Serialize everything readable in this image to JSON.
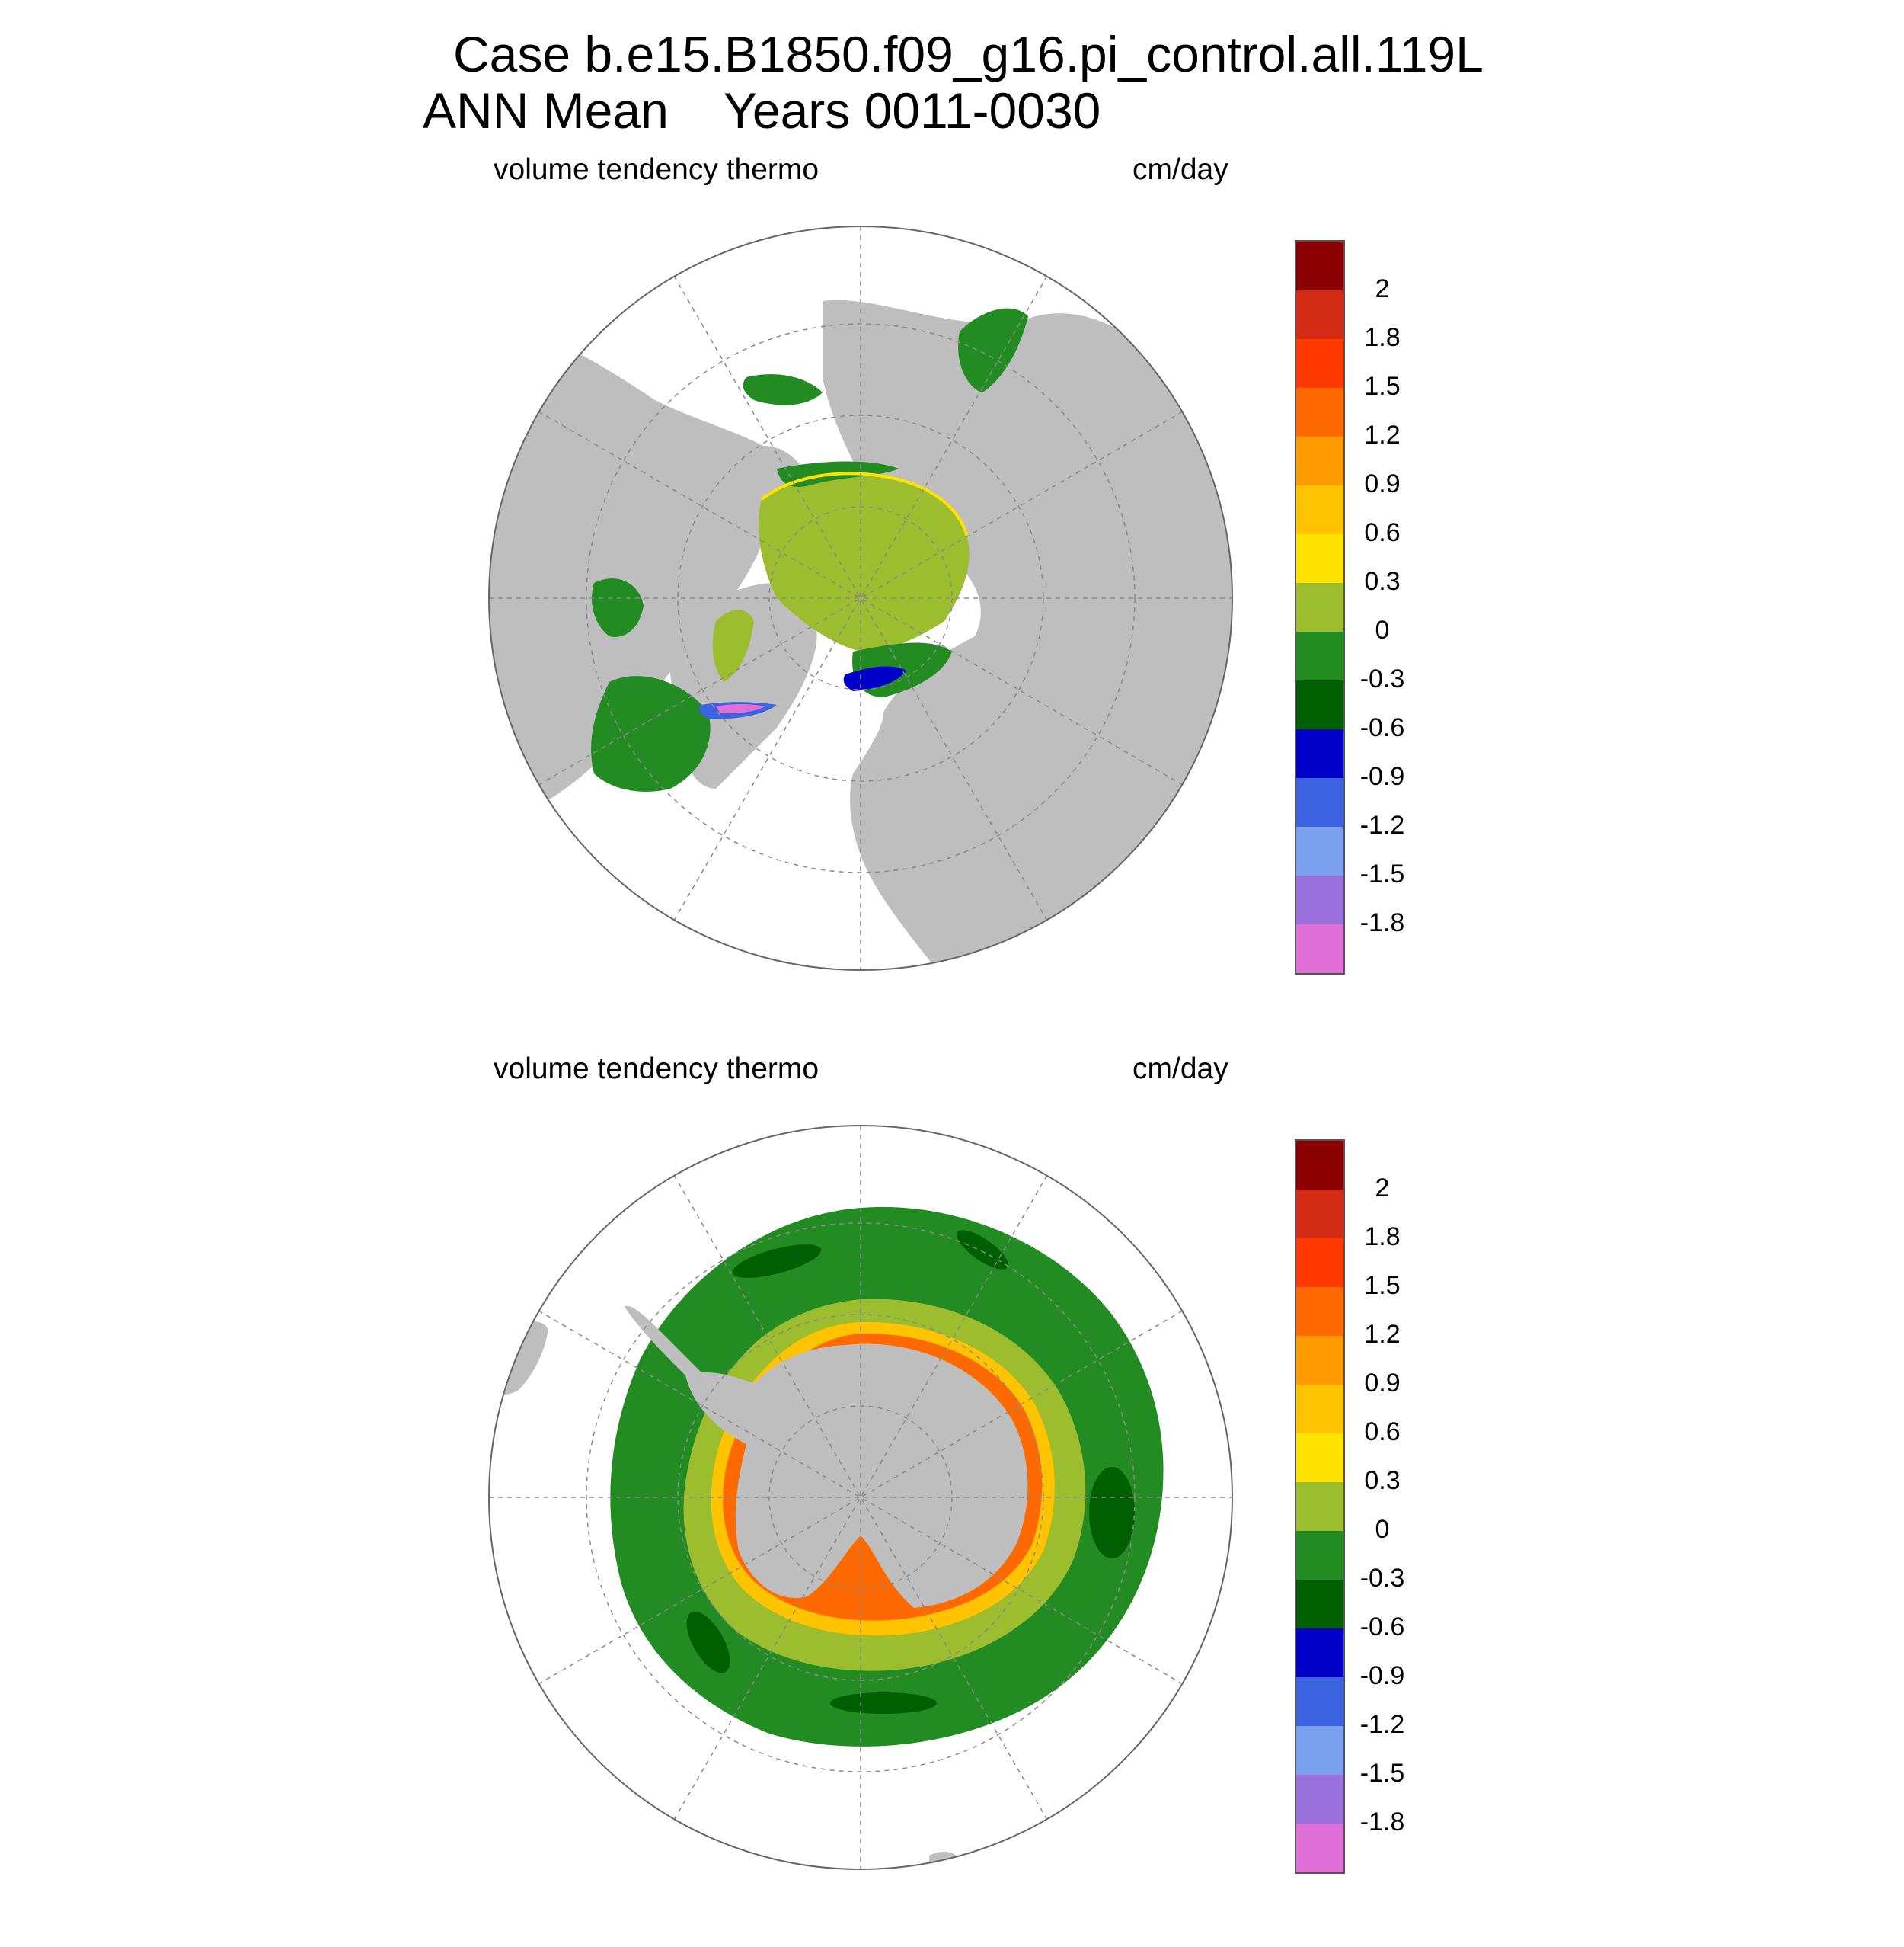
{
  "title": {
    "line1": "Case b.e15.B1850.f09_g16.pi_control.all.119L",
    "line2": "ANN Mean    Years 0011-0030"
  },
  "panels": [
    {
      "id": "north",
      "variable": "volume tendency thermo",
      "units": "cm/day",
      "hemisphere": "north"
    },
    {
      "id": "south",
      "variable": "volume tendency thermo",
      "units": "cm/day",
      "hemisphere": "south"
    }
  ],
  "colorbar": {
    "labels": [
      "2",
      "1.8",
      "1.5",
      "1.2",
      "0.9",
      "0.6",
      "0.3",
      "0",
      "-0.3",
      "-0.6",
      "-0.9",
      "-1.2",
      "-1.5",
      "-1.8"
    ],
    "colors": [
      "#8b0000",
      "#d42c14",
      "#ff3a00",
      "#ff6a00",
      "#ff9a00",
      "#ffc300",
      "#ffe200",
      "#9bbd2e",
      "#228b22",
      "#005f00",
      "#0000c8",
      "#3b63e0",
      "#7aa0f0",
      "#9a70dc",
      "#e070d8"
    ]
  },
  "colors": {
    "land": "#bebebe",
    "ocean": "#ffffff",
    "grid": "#8a8a8a"
  }
}
